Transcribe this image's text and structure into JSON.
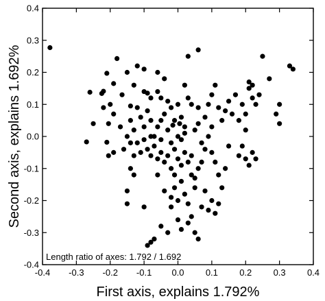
{
  "chart_data": {
    "type": "scatter",
    "xlabel": "First axis, explains 1.792%",
    "ylabel": "Second axis, explains 1.692%",
    "annotation": "Length ratio of axes: 1.792 / 1.692",
    "xlim": [
      -0.4,
      0.4
    ],
    "ylim": [
      -0.4,
      0.4
    ],
    "x_ticks": [
      -0.4,
      -0.3,
      -0.2,
      -0.1,
      0.0,
      0.1,
      0.2,
      0.3,
      0.4
    ],
    "x_tick_labels": [
      "-0.4",
      "-0.3",
      "-0.2",
      "-0.1",
      "0.0",
      "0.1",
      "0.2",
      "0.3",
      "0.4"
    ],
    "y_ticks": [
      -0.4,
      -0.3,
      -0.2,
      -0.1,
      0.0,
      0.1,
      0.2,
      0.3,
      0.4
    ],
    "y_tick_labels": [
      "-0.4",
      "-0.3",
      "-0.2",
      "-0.1",
      "0.0",
      "0.1",
      "0.2",
      "0.3",
      "0.4"
    ],
    "grid": false,
    "marker_color": "#000000",
    "points": [
      [
        -0.378,
        0.277
      ],
      [
        -0.26,
        0.138
      ],
      [
        -0.27,
        -0.017
      ],
      [
        -0.225,
        0.134
      ],
      [
        -0.22,
        0.141
      ],
      [
        -0.21,
        0.197
      ],
      [
        -0.18,
        0.243
      ],
      [
        -0.19,
        0.165
      ],
      [
        -0.2,
        0.1
      ],
      [
        -0.205,
        0.04
      ],
      [
        -0.21,
        -0.018
      ],
      [
        -0.19,
        -0.05
      ],
      [
        -0.205,
        -0.06
      ],
      [
        -0.165,
        0.13
      ],
      [
        -0.15,
        0.2
      ],
      [
        -0.14,
        0.095
      ],
      [
        -0.12,
        0.22
      ],
      [
        -0.1,
        0.21
      ],
      [
        -0.13,
        0.16
      ],
      [
        -0.09,
        0.135
      ],
      [
        -0.14,
        0.05
      ],
      [
        -0.13,
        0.02
      ],
      [
        -0.12,
        0.09
      ],
      [
        -0.11,
        0.06
      ],
      [
        -0.1,
        0.03
      ],
      [
        -0.09,
        0.08
      ],
      [
        -0.08,
        0.05
      ],
      [
        -0.08,
        0.12
      ],
      [
        -0.06,
        0.14
      ],
      [
        -0.05,
        0.12
      ],
      [
        -0.03,
        0.11
      ],
      [
        -0.02,
        0.09
      ],
      [
        -0.01,
        0.05
      ],
      [
        0.0,
        0.1
      ],
      [
        0.01,
        0.06
      ],
      [
        0.02,
        0.03
      ],
      [
        -0.04,
        0.07
      ],
      [
        -0.06,
        0.03
      ],
      [
        -0.07,
        0.0
      ],
      [
        -0.05,
        -0.01
      ],
      [
        -0.03,
        0.02
      ],
      [
        -0.02,
        -0.02
      ],
      [
        0.0,
        0.0
      ],
      [
        0.01,
        -0.01
      ],
      [
        0.02,
        0.01
      ],
      [
        -0.015,
        0.035
      ],
      [
        0.005,
        0.04
      ],
      [
        -0.15,
        0.0
      ],
      [
        -0.14,
        -0.02
      ],
      [
        -0.13,
        -0.06
      ],
      [
        -0.12,
        -0.02
      ],
      [
        -0.11,
        -0.05
      ],
      [
        -0.1,
        -0.01
      ],
      [
        -0.09,
        -0.04
      ],
      [
        -0.08,
        -0.06
      ],
      [
        -0.07,
        -0.03
      ],
      [
        -0.06,
        -0.07
      ],
      [
        -0.05,
        -0.05
      ],
      [
        -0.04,
        -0.08
      ],
      [
        -0.03,
        -0.06
      ],
      [
        -0.02,
        -0.1
      ],
      [
        -0.01,
        -0.04
      ],
      [
        0.0,
        -0.07
      ],
      [
        0.01,
        -0.09
      ],
      [
        0.02,
        -0.05
      ],
      [
        0.03,
        -0.08
      ],
      [
        0.04,
        -0.06
      ],
      [
        -0.01,
        -0.12
      ],
      [
        0.01,
        -0.14
      ],
      [
        0.0,
        -0.2
      ],
      [
        -0.02,
        -0.22
      ],
      [
        0.02,
        -0.18
      ],
      [
        0.03,
        -0.21
      ],
      [
        0.04,
        -0.12
      ],
      [
        0.05,
        -0.13
      ],
      [
        0.06,
        -0.1
      ],
      [
        0.07,
        -0.08
      ],
      [
        0.05,
        -0.16
      ],
      [
        0.04,
        -0.25
      ],
      [
        0.03,
        -0.27
      ],
      [
        0.0,
        -0.26
      ],
      [
        0.01,
        -0.29
      ],
      [
        0.05,
        -0.3
      ],
      [
        0.06,
        -0.32
      ],
      [
        -0.03,
        -0.3
      ],
      [
        -0.05,
        -0.28
      ],
      [
        -0.07,
        -0.32
      ],
      [
        -0.08,
        -0.33
      ],
      [
        -0.09,
        -0.34
      ],
      [
        -0.1,
        -0.22
      ],
      [
        -0.15,
        -0.17
      ],
      [
        -0.15,
        -0.21
      ],
      [
        -0.14,
        -0.1
      ],
      [
        -0.13,
        -0.12
      ],
      [
        -0.01,
        -0.16
      ],
      [
        -0.02,
        -0.19
      ],
      [
        -0.04,
        -0.17
      ],
      [
        -0.06,
        -0.12
      ],
      [
        0.03,
        0.25
      ],
      [
        0.06,
        0.27
      ],
      [
        -0.06,
        0.2
      ],
      [
        -0.04,
        0.18
      ],
      [
        0.1,
        0.13
      ],
      [
        0.11,
        0.16
      ],
      [
        0.09,
        0.1
      ],
      [
        0.08,
        0.06
      ],
      [
        0.12,
        0.09
      ],
      [
        0.06,
        0.04
      ],
      [
        0.05,
        0.02
      ],
      [
        0.1,
        0.03
      ],
      [
        0.13,
        0.05
      ],
      [
        0.14,
        0.08
      ],
      [
        0.15,
        0.11
      ],
      [
        0.16,
        0.07
      ],
      [
        0.17,
        0.13
      ],
      [
        0.18,
        0.05
      ],
      [
        0.19,
        0.1
      ],
      [
        0.2,
        0.07
      ],
      [
        0.2,
        0.02
      ],
      [
        0.21,
        0.15
      ],
      [
        0.22,
        0.12
      ],
      [
        0.23,
        0.1
      ],
      [
        0.21,
        0.17
      ],
      [
        0.22,
        0.16
      ],
      [
        0.24,
        0.13
      ],
      [
        0.25,
        0.25
      ],
      [
        0.27,
        0.18
      ],
      [
        0.3,
        0.1
      ],
      [
        0.3,
        0.04
      ],
      [
        0.33,
        0.22
      ],
      [
        0.34,
        0.21
      ],
      [
        0.29,
        0.07
      ],
      [
        0.18,
        -0.06
      ],
      [
        0.19,
        -0.03
      ],
      [
        0.2,
        -0.07
      ],
      [
        0.21,
        -0.09
      ],
      [
        0.22,
        -0.05
      ],
      [
        0.23,
        -0.07
      ],
      [
        0.15,
        -0.03
      ],
      [
        0.14,
        -0.1
      ],
      [
        0.12,
        -0.12
      ],
      [
        0.1,
        -0.2
      ],
      [
        0.11,
        -0.24
      ],
      [
        0.09,
        -0.23
      ],
      [
        0.08,
        -0.17
      ],
      [
        0.07,
        -0.22
      ],
      [
        0.13,
        -0.16
      ],
      [
        0.12,
        -0.21
      ],
      [
        -0.22,
        0.09
      ],
      [
        -0.25,
        0.04
      ],
      [
        -0.17,
        0.03
      ],
      [
        -0.16,
        -0.04
      ],
      [
        -0.19,
        0.07
      ],
      [
        0.07,
        -0.02
      ],
      [
        0.08,
        -0.04
      ],
      [
        0.09,
        0.0
      ],
      [
        0.1,
        -0.05
      ],
      [
        0.11,
        -0.08
      ],
      [
        0.06,
        0.09
      ],
      [
        0.04,
        0.1
      ],
      [
        -0.1,
        0.14
      ],
      [
        -0.08,
        0.0
      ],
      [
        -0.05,
        0.05
      ],
      [
        0.03,
        0.12
      ],
      [
        0.02,
        0.16
      ]
    ]
  }
}
